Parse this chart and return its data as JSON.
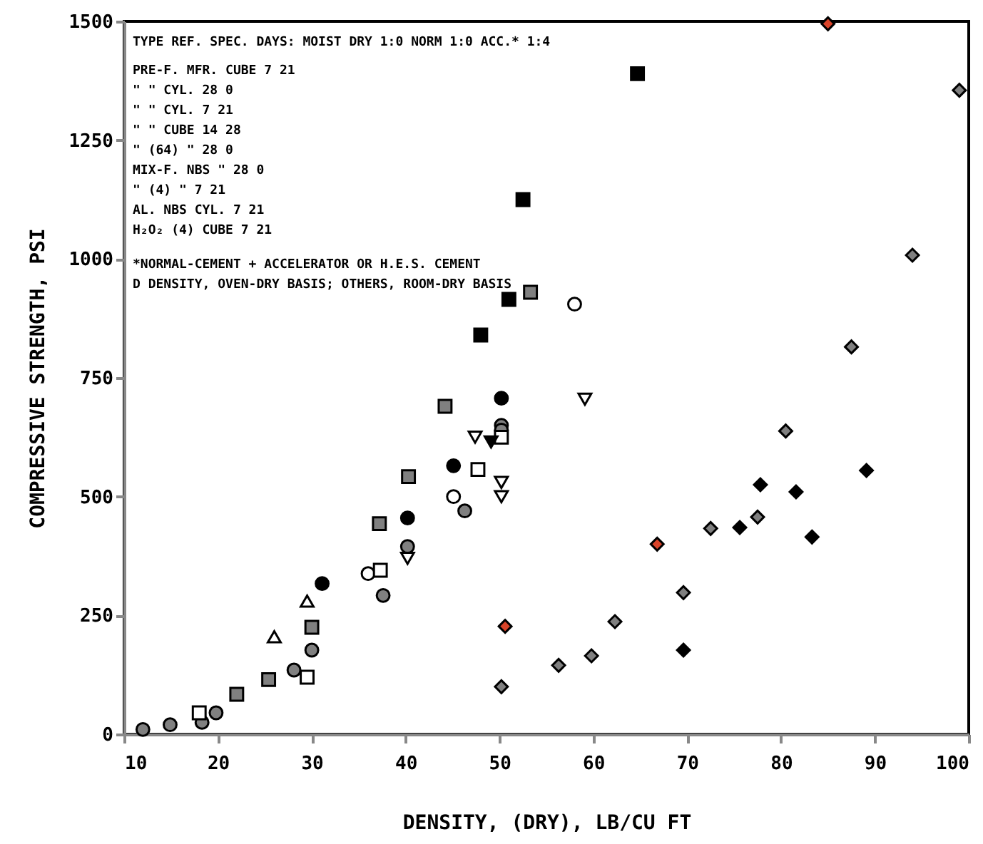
{
  "chart_data": {
    "type": "scatter",
    "xlabel": "DENSITY, (DRY), LB/CU FT",
    "ylabel": "COMPRESSIVE STRENGTH, PSI",
    "xlim": [
      10,
      100
    ],
    "xticks": [
      10,
      20,
      30,
      40,
      50,
      60,
      70,
      80,
      90,
      100
    ],
    "ylim": [
      0,
      1500
    ],
    "yticks": [
      0,
      250,
      500,
      750,
      1000,
      1250,
      1500
    ],
    "grid": false,
    "annotations": [
      "TYPE  REF.  SPEC.   DAYS: MOIST DRY   1:0 NORM   1:0 ACC.*   1:4",
      "PRE-F. MFR.  CUBE    7    21",
      "  \"     \"    CYL.   28     0",
      "  \"     \"    CYL.    7    21",
      "  \"     \"    CUBE   14    28",
      "  \"    (64)   \"     28     0",
      "MIX-F. NBS    \"     28     0",
      "  \"    (4)    \"      7    21",
      "AL.    NBS   CYL.    7    21",
      "H₂O₂   (4)   CUBE    7    21",
      "*NORMAL-CEMENT + ACCELERATOR OR H.E.S. CEMENT",
      "D DENSITY, OVEN-DRY BASIS; OTHERS, ROOM-DRY BASIS"
    ],
    "series": [
      {
        "marker": "circle",
        "color": "#ffffff",
        "x": [
          36,
          45.1,
          58
        ],
        "values": [
          338,
          500,
          905
        ]
      },
      {
        "marker": "circle",
        "color": "#808080",
        "x": [
          12,
          14.9,
          18.3,
          19.8,
          28.1,
          30,
          37.6,
          40.2,
          46.3,
          50.2,
          50.2
        ],
        "values": [
          10,
          20,
          25,
          45,
          135,
          177,
          292,
          395,
          470,
          650,
          640
        ]
      },
      {
        "marker": "circle",
        "color": "#000000",
        "x": [
          31.1,
          40.2,
          45.1,
          50.2
        ],
        "values": [
          317,
          455,
          565,
          707
        ]
      },
      {
        "marker": "square",
        "color": "#808080",
        "x": [
          22,
          25.4,
          30,
          37.2,
          40.3,
          44.2,
          53.3
        ],
        "values": [
          84,
          115,
          225,
          443,
          542,
          690,
          930
        ]
      },
      {
        "marker": "square",
        "color": "#000000",
        "x": [
          48,
          51,
          52.5,
          64.7
        ],
        "values": [
          840,
          915,
          1125,
          1390
        ]
      },
      {
        "marker": "square",
        "color": "#ffffff",
        "x": [
          18,
          29.5,
          37.3,
          47.7,
          50.2
        ],
        "values": [
          45,
          120,
          345,
          557,
          625
        ]
      },
      {
        "marker": "triangle-down",
        "color": "#ffffff",
        "x": [
          40.2,
          47.4,
          50.2,
          50.2,
          59.1
        ],
        "values": [
          370,
          625,
          530,
          500,
          705
        ]
      },
      {
        "marker": "triangle-down",
        "color": "#000000",
        "x": [
          49.1
        ],
        "values": [
          615
        ]
      },
      {
        "marker": "triangle",
        "color": "#ffffff",
        "x": [
          26,
          29.5
        ],
        "values": [
          205,
          280
        ]
      },
      {
        "marker": "diamond",
        "color": "#808080",
        "x": [
          50.2,
          56.3,
          59.8,
          62.3,
          69.6,
          72.5,
          77.5,
          80.5,
          87.5,
          94,
          99
        ],
        "values": [
          100,
          145,
          165,
          237,
          298,
          433,
          457,
          638,
          815,
          1008,
          1355
        ]
      },
      {
        "marker": "diamond",
        "color": "#000000",
        "x": [
          69.6,
          75.6,
          77.8,
          81.6,
          83.3,
          89.1
        ],
        "values": [
          177,
          435,
          525,
          510,
          415,
          555
        ]
      },
      {
        "marker": "diamond",
        "color": "#d9442a",
        "x": [
          50.6,
          66.8,
          85
        ],
        "values": [
          227,
          400,
          1495
        ]
      }
    ]
  }
}
